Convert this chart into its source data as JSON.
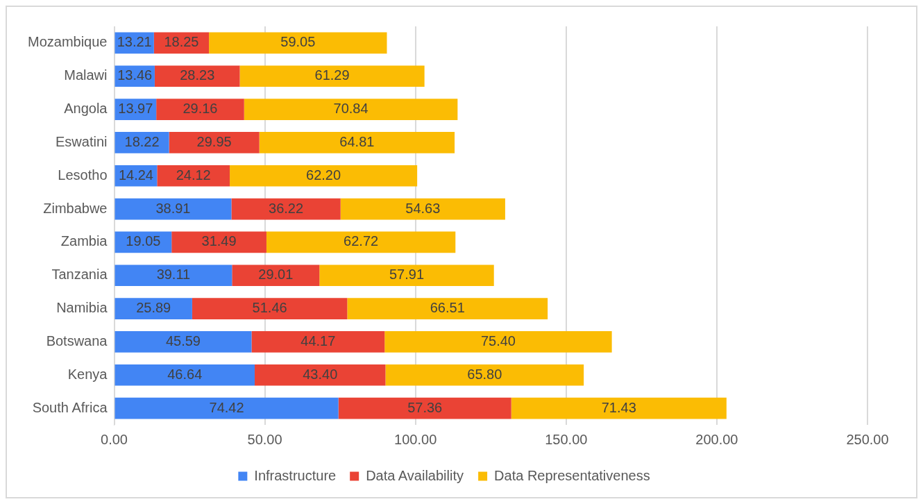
{
  "chart_data": {
    "type": "bar",
    "orientation": "horizontal",
    "stacked": true,
    "categories": [
      "Mozambique",
      "Malawi",
      "Angola",
      "Eswatini",
      "Lesotho",
      "Zimbabwe",
      "Zambia",
      "Tanzania",
      "Namibia",
      "Botswana",
      "Kenya",
      "South Africa"
    ],
    "series": [
      {
        "name": "Infrastructure",
        "color": "#4285f4",
        "values": [
          13.21,
          13.46,
          13.97,
          18.22,
          14.24,
          38.91,
          19.05,
          39.11,
          25.89,
          45.59,
          46.64,
          74.42
        ],
        "value_labels": [
          "13.21",
          "13.46",
          "13.97",
          "18.22",
          "14.24",
          "38.91",
          "19.05",
          "39.11",
          "25.89",
          "45.59",
          "46.64",
          "74.42"
        ]
      },
      {
        "name": "Data Availability",
        "color": "#ea4335",
        "values": [
          18.25,
          28.23,
          29.16,
          29.95,
          24.12,
          36.22,
          31.49,
          29.01,
          51.46,
          44.17,
          43.4,
          57.36
        ],
        "value_labels": [
          "18.25",
          "28.23",
          "29.16",
          "29.95",
          "24.12",
          "36.22",
          "31.49",
          "29.01",
          "51.46",
          "44.17",
          "43.40",
          "57.36"
        ]
      },
      {
        "name": "Data Representativeness",
        "color": "#fbbc04",
        "values": [
          59.05,
          61.29,
          70.84,
          64.81,
          62.2,
          54.63,
          62.72,
          57.91,
          66.51,
          75.4,
          65.8,
          71.43
        ],
        "value_labels": [
          "59.05",
          "61.29",
          "70.84",
          "64.81",
          "62.20",
          "54.63",
          "62.72",
          "57.91",
          "66.51",
          "75.40",
          "65.80",
          "71.43"
        ]
      }
    ],
    "xlim": [
      0,
      250
    ],
    "xticks": [
      {
        "value": 0,
        "label": "0.00"
      },
      {
        "value": 50,
        "label": "50.00"
      },
      {
        "value": 100,
        "label": "100.00"
      },
      {
        "value": 150,
        "label": "150.00"
      },
      {
        "value": 200,
        "label": "200.00"
      },
      {
        "value": 250,
        "label": "250.00"
      }
    ],
    "grid": "x",
    "legend": "bottom"
  }
}
